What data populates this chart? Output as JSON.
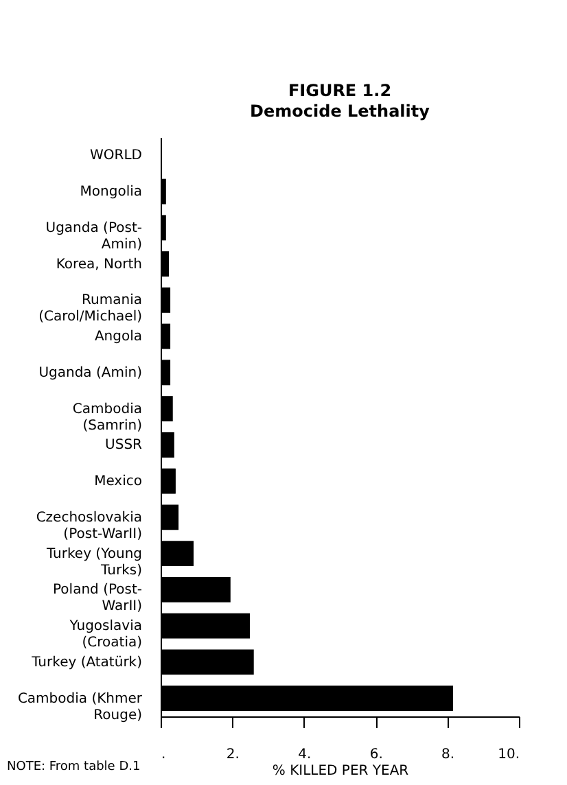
{
  "chart_data": {
    "type": "bar",
    "orientation": "horizontal",
    "title": "FIGURE 1.2",
    "subtitle": "Democide Lethality",
    "xlabel": "% KILLED PER YEAR",
    "categories": [
      "WORLD",
      "Mongolia",
      "Uganda (Post-Amin)",
      "Korea, North",
      "Rumania (Carol/Michael)",
      "Angola",
      "Uganda (Amin)",
      "Cambodia (Samrin)",
      "USSR",
      "Mexico",
      "Czechoslovakia (Post-WarII)",
      "Turkey (Young Turks)",
      "Poland (Post-WarII)",
      "Yugoslavia (Croatia)",
      "Turkey (Atatürk)",
      "Cambodia (Khmer Rouge)"
    ],
    "values": [
      0.03,
      0.15,
      0.15,
      0.23,
      0.27,
      0.27,
      0.27,
      0.34,
      0.38,
      0.42,
      0.5,
      0.92,
      1.95,
      2.49,
      2.6,
      8.16
    ],
    "color": "#000000",
    "xlim": [
      0,
      10
    ],
    "xticks": [
      {
        "value": 0,
        "label": "."
      },
      {
        "value": 2,
        "label": "2."
      },
      {
        "value": 4,
        "label": "4."
      },
      {
        "value": 6,
        "label": "6."
      },
      {
        "value": 8,
        "label": "8."
      },
      {
        "value": 10,
        "label": "10."
      }
    ],
    "grid": false,
    "annotations": [
      "NOTE: From table D.1"
    ]
  }
}
